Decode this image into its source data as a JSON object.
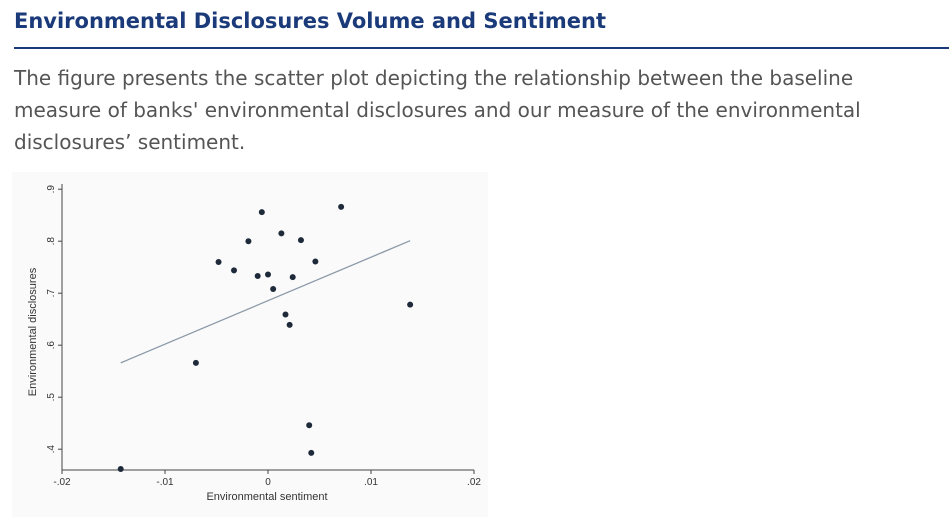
{
  "page": {
    "title": "Environmental Disclosures Volume and Sentiment",
    "description": "The figure presents the scatter plot depicting the relationship between the baseline measure of banks' environmental disclosures and our measure of the environmental disclosures’ sentiment."
  },
  "colors": {
    "title": "#1b3a7a",
    "text": "#555555",
    "points": "#1e2a3a",
    "fit_line": "#8c9aa8"
  },
  "chart_data": {
    "type": "scatter",
    "xlabel": "Environmental sentiment",
    "ylabel": "Environmental disclosures",
    "xlim": [
      -0.02,
      0.02
    ],
    "ylim": [
      0.36,
      0.91
    ],
    "xticks": [
      -0.02,
      -0.01,
      0,
      0.01,
      0.02
    ],
    "xtick_labels": [
      "-.02",
      "-.01",
      "0",
      ".01",
      ".02"
    ],
    "yticks": [
      0.4,
      0.5,
      0.6,
      0.7,
      0.8,
      0.9
    ],
    "ytick_labels": [
      ".4",
      ".5",
      ".6",
      ".7",
      ".8",
      ".9"
    ],
    "grid": false,
    "series": [
      {
        "points": [
          {
            "x": -0.0143,
            "y": 0.362
          },
          {
            "x": -0.007,
            "y": 0.566
          },
          {
            "x": -0.0048,
            "y": 0.76
          },
          {
            "x": -0.0033,
            "y": 0.744
          },
          {
            "x": -0.0019,
            "y": 0.8
          },
          {
            "x": -0.001,
            "y": 0.733
          },
          {
            "x": -0.0006,
            "y": 0.856
          },
          {
            "x": 0.0,
            "y": 0.736
          },
          {
            "x": 0.0005,
            "y": 0.708
          },
          {
            "x": 0.0013,
            "y": 0.815
          },
          {
            "x": 0.0017,
            "y": 0.659
          },
          {
            "x": 0.0021,
            "y": 0.639
          },
          {
            "x": 0.0024,
            "y": 0.731
          },
          {
            "x": 0.0032,
            "y": 0.802
          },
          {
            "x": 0.004,
            "y": 0.446
          },
          {
            "x": 0.0042,
            "y": 0.393
          },
          {
            "x": 0.0046,
            "y": 0.761
          },
          {
            "x": 0.0071,
            "y": 0.866
          },
          {
            "x": 0.0138,
            "y": 0.678
          }
        ]
      }
    ],
    "fit_line": {
      "x": [
        -0.0143,
        0.0138
      ],
      "y": [
        0.566,
        0.801
      ]
    }
  }
}
